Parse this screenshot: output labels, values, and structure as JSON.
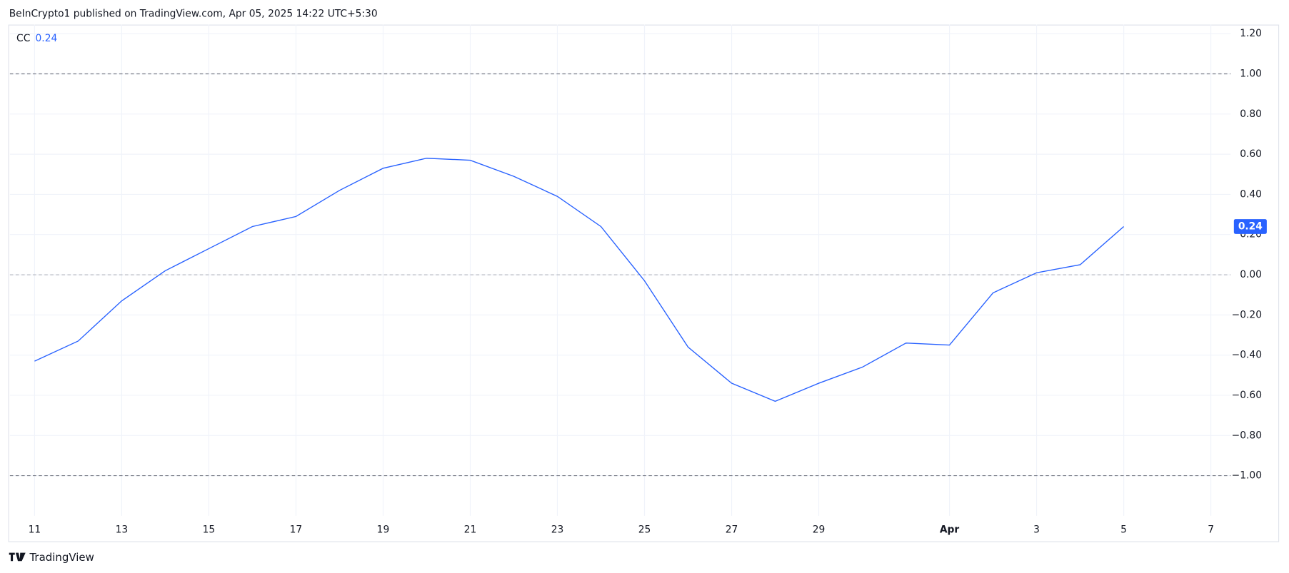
{
  "header": "BeInCrypto1 published on TradingView.com, Apr 05, 2025 14:22 UTC+5:30",
  "footer": "TradingView",
  "chart_data": {
    "type": "line",
    "categories": [
      "11",
      null,
      "13",
      null,
      "15",
      null,
      "17",
      null,
      "19",
      null,
      "21",
      null,
      "23",
      null,
      "25",
      null,
      "27",
      null,
      "29",
      null,
      null,
      "Apr",
      null,
      "3",
      null,
      "5",
      null,
      "7"
    ],
    "series": [
      {
        "name": "CC",
        "color": "#2962ff",
        "values": [
          -0.43,
          -0.33,
          -0.13,
          0.02,
          0.13,
          0.24,
          0.29,
          0.42,
          0.53,
          0.58,
          0.57,
          0.49,
          0.39,
          0.24,
          -0.03,
          -0.36,
          -0.54,
          -0.63,
          -0.54,
          -0.46,
          -0.34,
          -0.35,
          -0.09,
          0.01,
          0.05,
          0.24,
          null,
          null
        ]
      }
    ],
    "ylim": [
      -1.2,
      1.245
    ],
    "yticks": [
      {
        "value": 1.2,
        "label": "1.20"
      },
      {
        "value": 1,
        "label": "1.00"
      },
      {
        "value": 0.8,
        "label": "0.80"
      },
      {
        "value": 0.6,
        "label": "0.60"
      },
      {
        "value": 0.4,
        "label": "0.40"
      },
      {
        "value": 0.2,
        "label": "0.20"
      },
      {
        "value": 0,
        "label": "0.00"
      },
      {
        "value": -0.2,
        "label": "−0.20"
      },
      {
        "value": -0.4,
        "label": "−0.40"
      },
      {
        "value": -0.6,
        "label": "−0.60"
      },
      {
        "value": -0.8,
        "label": "−0.80"
      },
      {
        "value": -1,
        "label": "−1.00"
      }
    ],
    "levels": [
      1,
      0,
      -1
    ],
    "grid": true
  }
}
